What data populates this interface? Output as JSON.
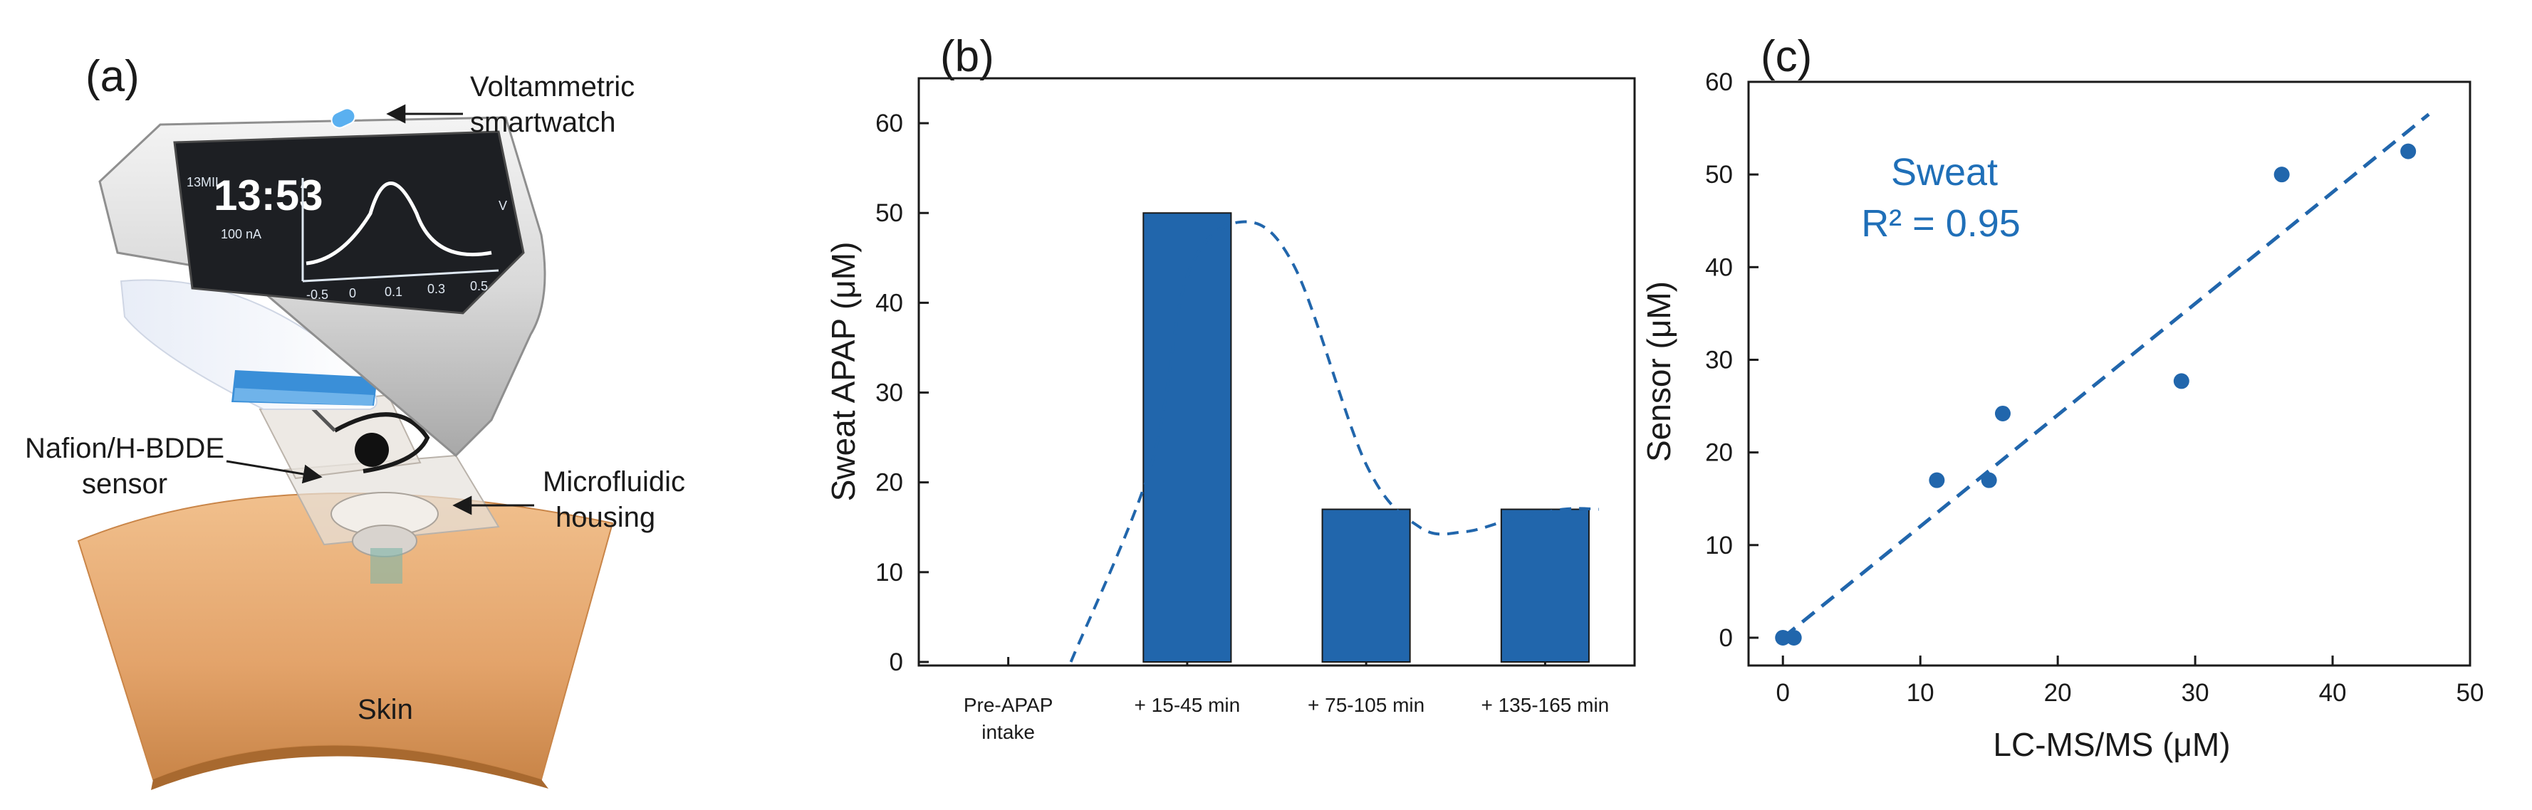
{
  "panel_a": {
    "label": "(a)",
    "annotations": {
      "watch": [
        "Voltammetric",
        "smartwatch"
      ],
      "sensor": [
        "Nafion/H-BDDE",
        "sensor"
      ],
      "housing": [
        "Microfluidic",
        "housing"
      ],
      "skin": "Skin"
    },
    "watch_screen": {
      "time": "13:53",
      "corner_label": "13MIL",
      "current_label": "100 nA",
      "x_ticks": [
        "-0.5",
        "0",
        "0.1",
        "0.3",
        "0.5"
      ],
      "x_unit": "V"
    }
  },
  "panel_b": {
    "label": "(b)",
    "colors": {
      "bar": "#2166ac",
      "curve": "#2166ac"
    }
  },
  "panel_c": {
    "label": "(c)",
    "annotation": {
      "line1": "Sweat",
      "line2": "R² = 0.95"
    },
    "colors": {
      "point": "#2166ac",
      "fit": "#2166ac",
      "text": "#1f6fb8"
    }
  },
  "chart_data": [
    {
      "type": "bar",
      "panel": "b",
      "categories": [
        {
          "lines": [
            "Pre-APAP",
            "intake"
          ]
        },
        {
          "lines": [
            "+ 15-45 min"
          ]
        },
        {
          "lines": [
            "+ 75-105 min"
          ]
        },
        {
          "lines": [
            "+ 135-165 min"
          ]
        }
      ],
      "values": [
        0,
        50,
        17,
        17
      ],
      "trend_curve": {
        "style": "dashed",
        "points": [
          [
            0.35,
            0
          ],
          [
            0.8,
            22
          ],
          [
            1.0,
            43
          ],
          [
            1.3,
            49
          ],
          [
            1.6,
            44
          ],
          [
            2.0,
            22
          ],
          [
            2.3,
            15
          ],
          [
            2.55,
            14.5
          ],
          [
            2.8,
            15.8
          ],
          [
            3.1,
            17
          ],
          [
            3.3,
            17
          ]
        ]
      },
      "ylabel": "Sweat APAP (μM)",
      "ylim": [
        0,
        65
      ],
      "yticks": [
        0,
        10,
        20,
        30,
        40,
        50,
        60
      ],
      "xlabel": ""
    },
    {
      "type": "scatter",
      "panel": "c",
      "x": [
        0,
        0.8,
        11.2,
        15,
        16,
        29,
        36.3,
        45.5
      ],
      "y": [
        0,
        0,
        17,
        17,
        24.2,
        27.7,
        50,
        52.5
      ],
      "fit_line": {
        "style": "dashed",
        "x": [
          0,
          47
        ],
        "y": [
          0,
          56.5
        ]
      },
      "xlabel": "LC-MS/MS (μM)",
      "ylabel": "Sensor (μM)",
      "xlim": [
        -2.5,
        50
      ],
      "ylim": [
        -3,
        60
      ],
      "xticks": [
        0,
        10,
        20,
        30,
        40,
        50
      ],
      "yticks": [
        0,
        10,
        20,
        30,
        40,
        50,
        60
      ]
    }
  ]
}
